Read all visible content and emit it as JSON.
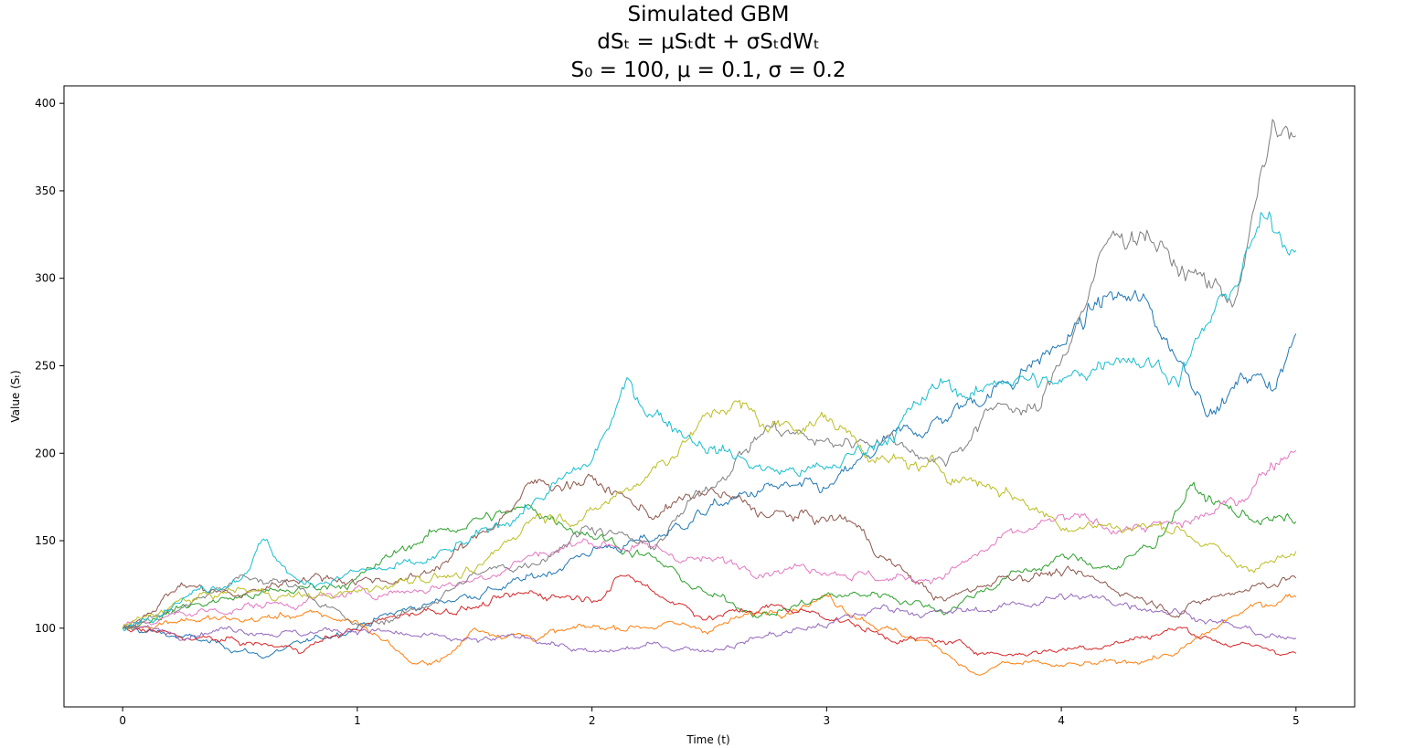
{
  "chart_data": {
    "type": "line",
    "title": [
      "Simulated GBM",
      "dSₜ = μSₜdt + σSₜdWₜ",
      "S₀ = 100, μ = 0.1, σ = 0.2"
    ],
    "xlabel": "Time (t)",
    "ylabel": "Value (Sₜ)",
    "xlim": [
      -0.25,
      5.25
    ],
    "ylim": [
      55,
      410
    ],
    "xticks": [
      0,
      1,
      2,
      3,
      4,
      5
    ],
    "yticks": [
      100,
      150,
      200,
      250,
      300,
      350,
      400
    ],
    "grid": false,
    "legend": false,
    "colors": [
      "#1f77b4",
      "#ff7f0e",
      "#2ca02c",
      "#d62728",
      "#9467bd",
      "#8c564b",
      "#e377c2",
      "#7f7f7f",
      "#bcbd22",
      "#17becf"
    ],
    "series": [
      {
        "x": [
          0,
          0.25,
          0.5,
          0.6,
          0.8,
          1.0,
          1.25,
          1.5,
          1.75,
          2.0,
          2.25,
          2.5,
          2.75,
          3.0,
          3.25,
          3.5,
          3.75,
          4.0,
          4.2,
          4.35,
          4.5,
          4.65,
          4.8,
          4.9,
          5.0
        ],
        "y": [
          100,
          95,
          88,
          84,
          92,
          102,
          112,
          120,
          128,
          145,
          150,
          168,
          180,
          178,
          205,
          220,
          240,
          262,
          290,
          285,
          255,
          225,
          245,
          240,
          265
        ]
      },
      {
        "x": [
          0,
          0.25,
          0.5,
          0.75,
          1.0,
          1.15,
          1.25,
          1.4,
          1.5,
          1.75,
          2.0,
          2.25,
          2.5,
          2.75,
          3.0,
          3.25,
          3.5,
          3.65,
          3.75,
          4.0,
          4.25,
          4.5,
          4.75,
          5.0
        ],
        "y": [
          100,
          106,
          104,
          108,
          104,
          90,
          78,
          85,
          100,
          95,
          100,
          102,
          100,
          110,
          118,
          100,
          88,
          72,
          80,
          78,
          80,
          86,
          108,
          120
        ]
      },
      {
        "x": [
          0,
          0.25,
          0.5,
          0.75,
          1.0,
          1.25,
          1.5,
          1.75,
          2.0,
          2.25,
          2.5,
          2.75,
          3.0,
          3.25,
          3.5,
          3.75,
          4.0,
          4.25,
          4.4,
          4.55,
          4.75,
          5.0
        ],
        "y": [
          100,
          112,
          118,
          122,
          128,
          150,
          162,
          168,
          155,
          140,
          118,
          108,
          118,
          120,
          110,
          128,
          140,
          135,
          150,
          180,
          165,
          160
        ]
      },
      {
        "x": [
          0,
          0.25,
          0.5,
          0.75,
          1.0,
          1.25,
          1.5,
          1.75,
          2.0,
          2.15,
          2.25,
          2.5,
          2.75,
          3.0,
          3.25,
          3.5,
          3.75,
          4.0,
          4.25,
          4.5,
          4.75,
          5.0
        ],
        "y": [
          100,
          95,
          92,
          88,
          100,
          110,
          112,
          120,
          118,
          130,
          122,
          106,
          112,
          108,
          95,
          92,
          85,
          88,
          92,
          100,
          90,
          86
        ]
      },
      {
        "x": [
          0,
          0.25,
          0.5,
          0.75,
          1.0,
          1.25,
          1.5,
          1.75,
          2.0,
          2.25,
          2.5,
          2.75,
          3.0,
          3.25,
          3.5,
          3.75,
          4.0,
          4.25,
          4.5,
          4.75,
          5.0
        ],
        "y": [
          100,
          98,
          100,
          97,
          100,
          95,
          92,
          95,
          85,
          90,
          88,
          96,
          102,
          112,
          108,
          112,
          118,
          115,
          110,
          100,
          92
        ]
      },
      {
        "x": [
          0,
          0.25,
          0.5,
          0.75,
          1.0,
          1.25,
          1.5,
          1.75,
          2.0,
          2.25,
          2.5,
          2.75,
          3.0,
          3.1,
          3.25,
          3.5,
          3.75,
          4.0,
          4.25,
          4.5,
          4.75,
          5.0
        ],
        "y": [
          100,
          125,
          118,
          130,
          128,
          128,
          150,
          182,
          185,
          165,
          178,
          165,
          162,
          162,
          140,
          115,
          130,
          132,
          122,
          110,
          122,
          130
        ]
      },
      {
        "x": [
          0,
          0.25,
          0.5,
          0.75,
          1.0,
          1.25,
          1.5,
          1.75,
          2.0,
          2.25,
          2.5,
          2.75,
          3.0,
          3.25,
          3.5,
          3.75,
          4.0,
          4.25,
          4.5,
          4.75,
          4.9,
          5.0
        ],
        "y": [
          100,
          108,
          112,
          115,
          120,
          122,
          128,
          142,
          150,
          145,
          138,
          135,
          135,
          128,
          130,
          150,
          162,
          158,
          158,
          172,
          195,
          205
        ]
      },
      {
        "x": [
          0,
          0.25,
          0.5,
          0.75,
          1.0,
          1.25,
          1.5,
          1.75,
          2.0,
          2.25,
          2.5,
          2.75,
          3.0,
          3.25,
          3.5,
          3.75,
          3.9,
          4.0,
          4.2,
          4.35,
          4.5,
          4.75,
          4.9,
          5.0
        ],
        "y": [
          100,
          112,
          128,
          125,
          100,
          110,
          130,
          138,
          160,
          145,
          182,
          215,
          205,
          210,
          195,
          230,
          222,
          255,
          320,
          330,
          305,
          290,
          385,
          380
        ]
      },
      {
        "x": [
          0,
          0.25,
          0.5,
          0.75,
          1.0,
          1.25,
          1.5,
          1.75,
          2.0,
          2.25,
          2.5,
          2.6,
          2.75,
          3.0,
          3.25,
          3.5,
          3.75,
          4.0,
          4.25,
          4.5,
          4.6,
          4.75,
          5.0
        ],
        "y": [
          100,
          115,
          122,
          118,
          120,
          130,
          130,
          165,
          165,
          190,
          220,
          230,
          215,
          220,
          195,
          190,
          180,
          160,
          158,
          158,
          150,
          135,
          140
        ]
      },
      {
        "x": [
          0,
          0.25,
          0.5,
          0.6,
          0.75,
          1.0,
          1.25,
          1.5,
          1.75,
          2.0,
          2.15,
          2.25,
          2.5,
          2.75,
          3.0,
          3.25,
          3.5,
          3.65,
          3.75,
          4.0,
          4.25,
          4.5,
          4.75,
          4.85,
          5.0
        ],
        "y": [
          100,
          118,
          130,
          150,
          125,
          132,
          135,
          150,
          172,
          195,
          238,
          225,
          205,
          190,
          190,
          210,
          240,
          232,
          245,
          238,
          260,
          245,
          300,
          330,
          320
        ]
      }
    ]
  }
}
